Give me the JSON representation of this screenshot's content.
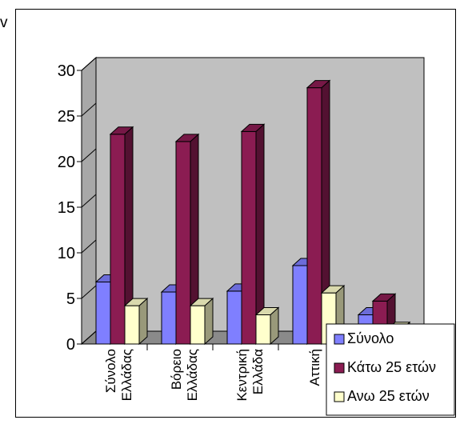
{
  "clipped_text": "v",
  "chart_data": {
    "type": "bar",
    "subtype": "3d-clustered-column",
    "categories": [
      "Σύνολο\nΕλλάδας",
      "Βόρειο\nΕλλάδας",
      "Κεντρική\nΕλλάδα",
      "Αττική",
      ""
    ],
    "series": [
      {
        "name": "Σύνολο",
        "values": [
          6.8,
          5.7,
          5.8,
          8.6,
          3.2
        ],
        "color": "#7f7fff"
      },
      {
        "name": "Κάτω 25 ετών",
        "values": [
          23.0,
          22.2,
          23.3,
          28.1,
          4.7
        ],
        "color": "#8b1c52"
      },
      {
        "name": "Ανω 25 ετών",
        "values": [
          4.2,
          4.2,
          3.2,
          5.6,
          1.6
        ],
        "color": "#ffffcc"
      }
    ],
    "ylim": [
      0,
      30
    ],
    "yticks": [
      0,
      5,
      10,
      15,
      20,
      25,
      30
    ],
    "grid": false,
    "legend": "bottom-right",
    "wall_color": "#c0c0c0"
  }
}
